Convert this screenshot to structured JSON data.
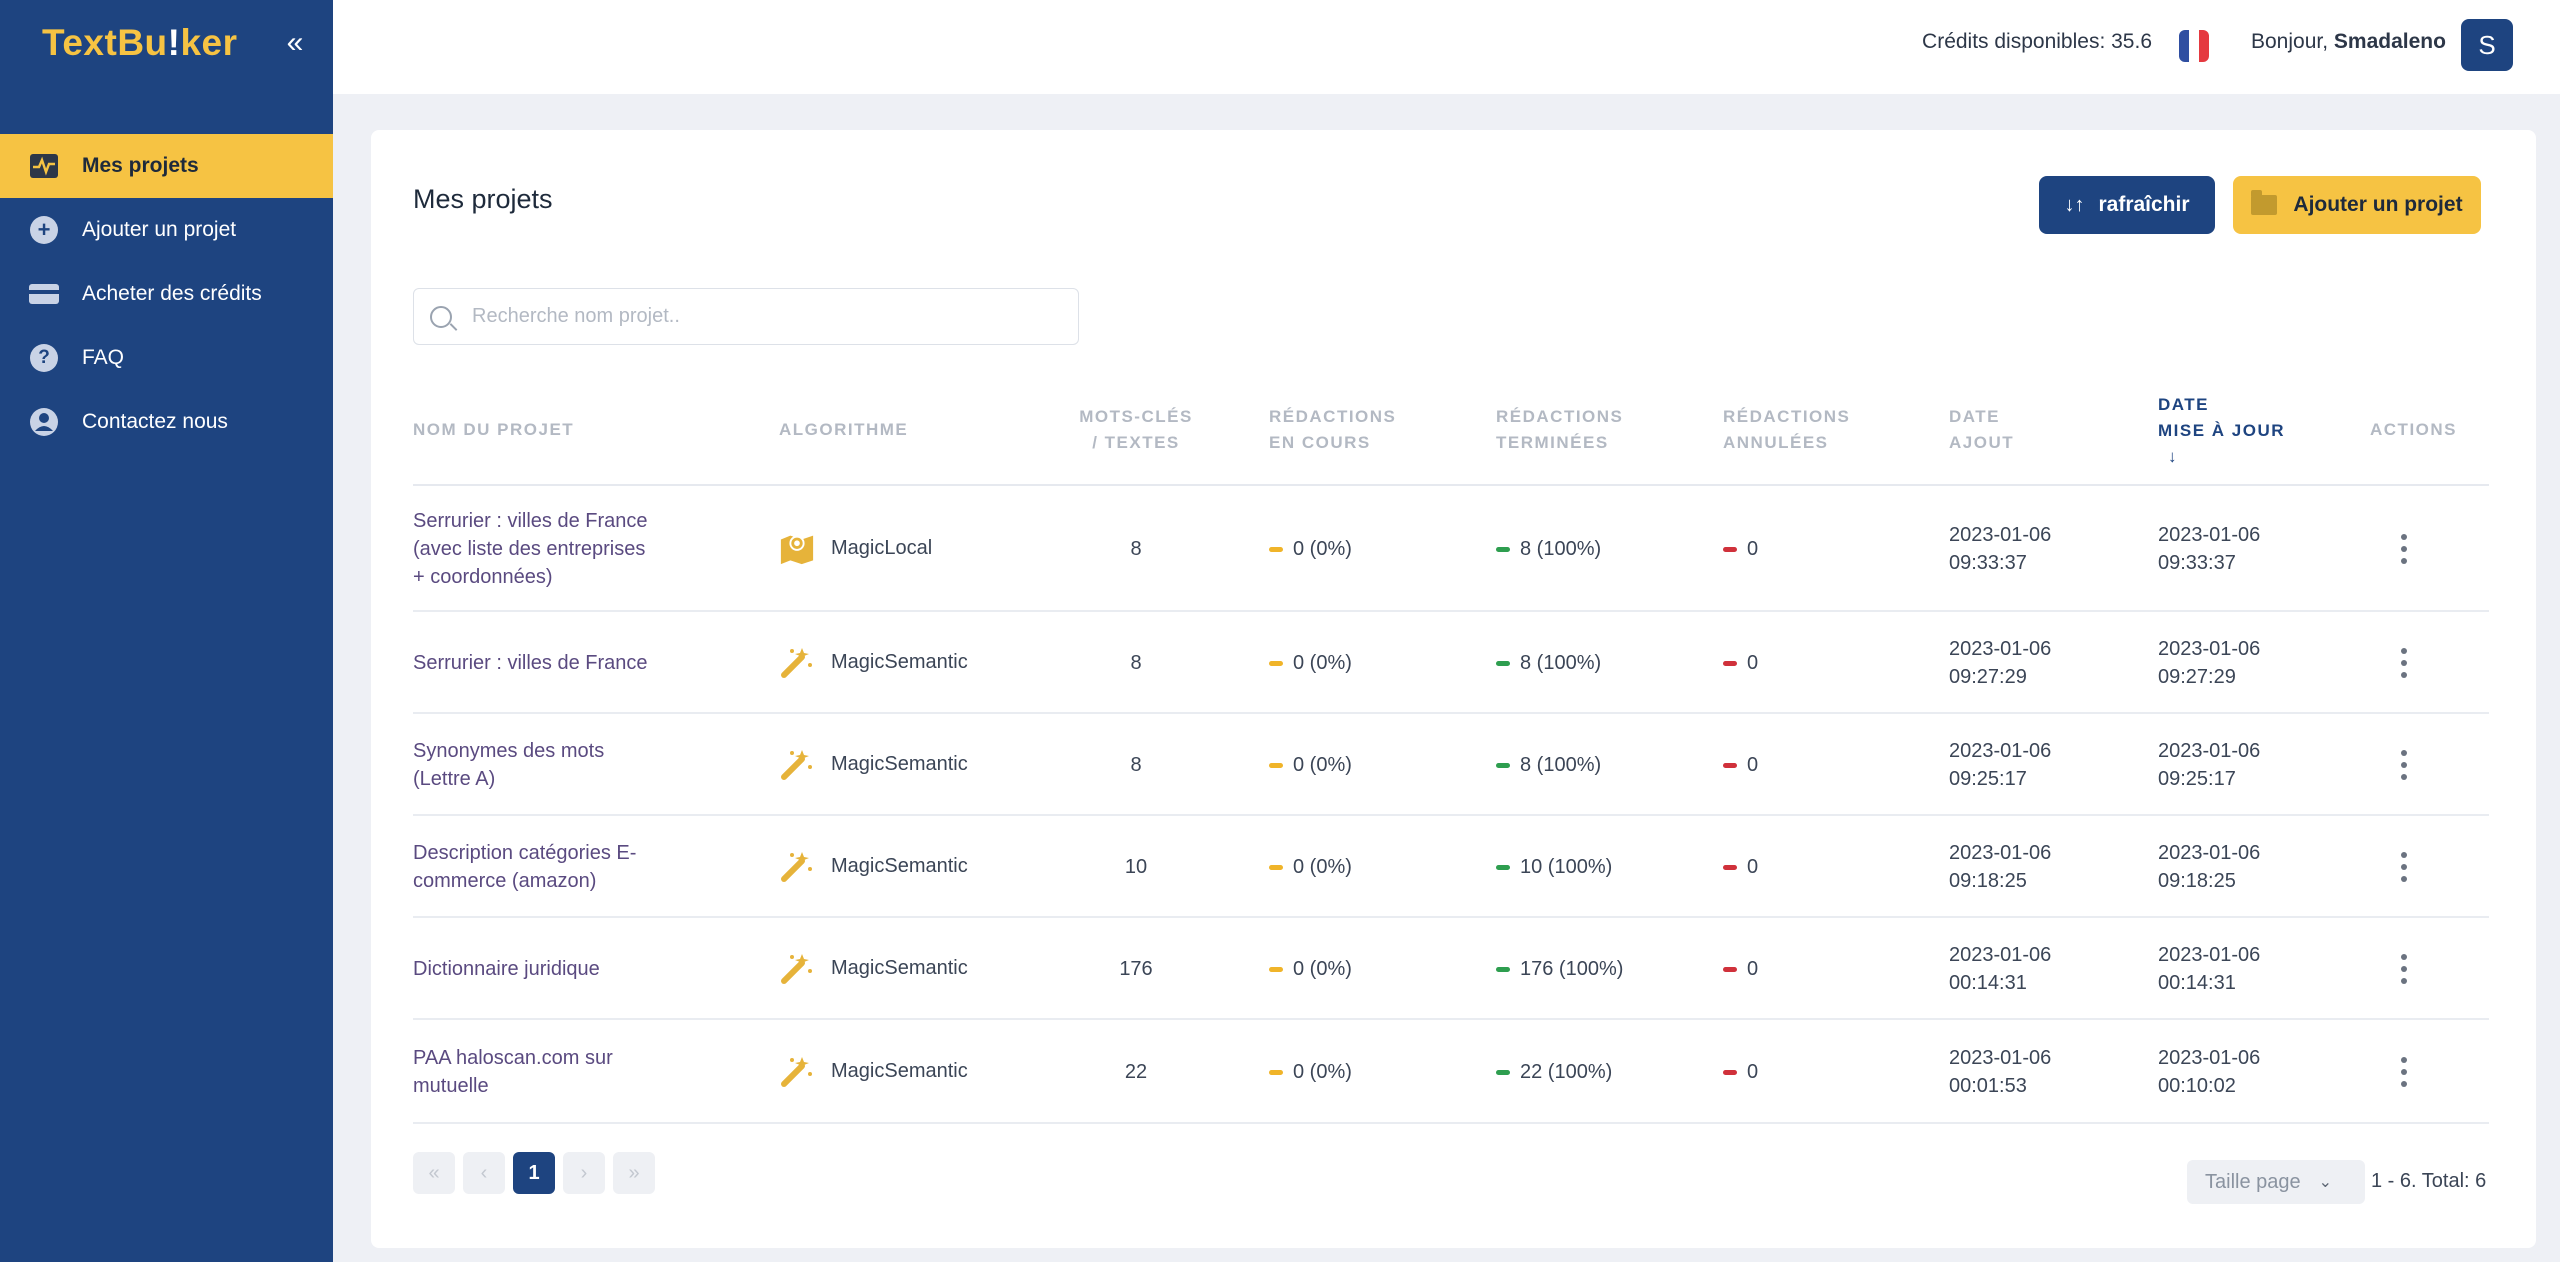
{
  "app": {
    "logo_part1": "TextBu",
    "logo_excl": "!",
    "logo_part2": "ker",
    "collapse_label": "«"
  },
  "sidebar": {
    "items": [
      {
        "label": "Mes projets"
      },
      {
        "label": "Ajouter un projet"
      },
      {
        "label": "Acheter des crédits"
      },
      {
        "label": "FAQ"
      },
      {
        "label": "Contactez nous"
      }
    ]
  },
  "header": {
    "credits": "Crédits disponibles: 35.6",
    "greeting": "Bonjour, ",
    "username": "Smadaleno",
    "avatar_letter": "S",
    "flag_colors": [
      "#2f4ea1",
      "#ffffff",
      "#e53940"
    ]
  },
  "main": {
    "title": "Mes projets",
    "refresh_label": "rafraîchir",
    "add_label": "Ajouter un projet",
    "search_placeholder": "Recherche nom projet.."
  },
  "table": {
    "headers": {
      "name": "NOM DU PROJET",
      "algo": "ALGORITHME",
      "kw1": "MOTS-CLÉS",
      "kw2": "/ TEXTES",
      "inprog1": "RÉDACTIONS",
      "inprog2": "EN COURS",
      "done1": "RÉDACTIONS",
      "done2": "TERMINÉES",
      "cancel1": "RÉDACTIONS",
      "cancel2": "ANNULÉES",
      "added1": "DATE",
      "added2": "AJOUT",
      "updated1": "DATE",
      "updated2": "MISE À JOUR",
      "sort_arrow": "↓",
      "actions": "ACTIONS"
    },
    "rows": [
      {
        "name_lines": [
          "Serrurier : villes de France",
          "(avec liste des entreprises",
          "+ coordonnées)"
        ],
        "algo": "MagicLocal",
        "algo_icon": "map-icon",
        "kw": "8",
        "inprog": "0 (0%)",
        "done": "8 (100%)",
        "cancel": "0",
        "added_date": "2023-01-06",
        "added_time": "09:33:37",
        "upd_date": "2023-01-06",
        "upd_time": "09:33:37"
      },
      {
        "name_lines": [
          "Serrurier : villes de France"
        ],
        "algo": "MagicSemantic",
        "algo_icon": "magic-wand-icon",
        "kw": "8",
        "inprog": "0 (0%)",
        "done": "8 (100%)",
        "cancel": "0",
        "added_date": "2023-01-06",
        "added_time": "09:27:29",
        "upd_date": "2023-01-06",
        "upd_time": "09:27:29"
      },
      {
        "name_lines": [
          "Synonymes des mots",
          "(Lettre A)"
        ],
        "algo": "MagicSemantic",
        "algo_icon": "magic-wand-icon",
        "kw": "8",
        "inprog": "0 (0%)",
        "done": "8 (100%)",
        "cancel": "0",
        "added_date": "2023-01-06",
        "added_time": "09:25:17",
        "upd_date": "2023-01-06",
        "upd_time": "09:25:17"
      },
      {
        "name_lines": [
          "Description catégories E-",
          "commerce (amazon)"
        ],
        "algo": "MagicSemantic",
        "algo_icon": "magic-wand-icon",
        "kw": "10",
        "inprog": "0 (0%)",
        "done": "10 (100%)",
        "cancel": "0",
        "added_date": "2023-01-06",
        "added_time": "09:18:25",
        "upd_date": "2023-01-06",
        "upd_time": "09:18:25"
      },
      {
        "name_lines": [
          "Dictionnaire juridique"
        ],
        "algo": "MagicSemantic",
        "algo_icon": "magic-wand-icon",
        "kw": "176",
        "inprog": "0 (0%)",
        "done": "176 (100%)",
        "cancel": "0",
        "added_date": "2023-01-06",
        "added_time": "00:14:31",
        "upd_date": "2023-01-06",
        "upd_time": "00:14:31"
      },
      {
        "name_lines": [
          "PAA haloscan.com sur",
          "mutuelle"
        ],
        "algo": "MagicSemantic",
        "algo_icon": "magic-wand-icon",
        "kw": "22",
        "inprog": "0 (0%)",
        "done": "22 (100%)",
        "cancel": "0",
        "added_date": "2023-01-06",
        "added_time": "00:01:53",
        "upd_date": "2023-01-06",
        "upd_time": "00:10:02"
      }
    ]
  },
  "status_colors": {
    "in_progress": "#f0b429",
    "done": "#2e9e4f",
    "cancelled": "#d0313b"
  },
  "pagination": {
    "first": "«",
    "prev": "‹",
    "current": "1",
    "next": "›",
    "last": "»",
    "page_size_label": "Taille page",
    "total": "1 - 6. Total: 6"
  }
}
